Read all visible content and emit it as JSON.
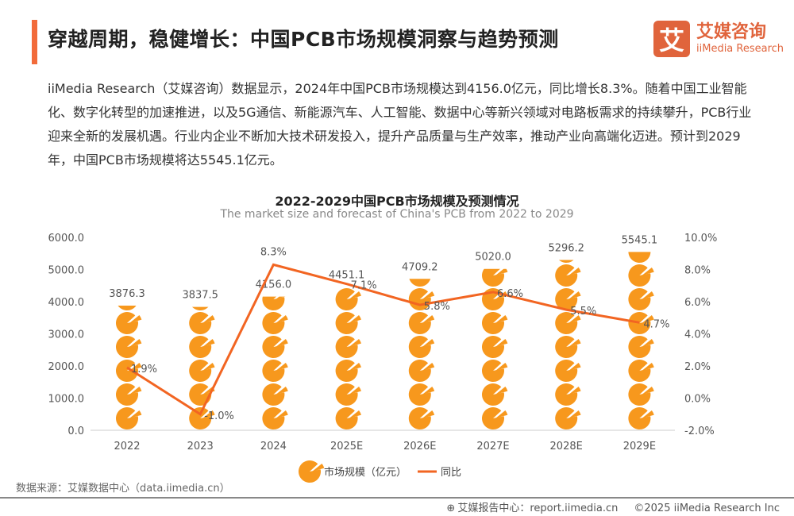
{
  "header": {
    "title": "穿越周期，稳健增长：中国PCB市场规模洞察与趋势预测",
    "logo_char": "艾",
    "logo_cn": "艾媒咨询",
    "logo_en": "iiMedia Research"
  },
  "paragraph": "iiMedia Research（艾媒咨询）数据显示，2024年中国PCB市场规模达到4156.0亿元，同比增长8.3%。随着中国工业智能化、数字化转型的加速推进，以及5G通信、新能源汽车、人工智能、数据中心等新兴领域对电路板需求的持续攀升，PCB行业迎来全新的发展机遇。行业内企业不断加大技术研发投入，提升产品质量与生产效率，推动产业向高端化迈进。预计到2029年，中国PCB市场规模将达5545.1亿元。",
  "chart_data": {
    "type": "bar",
    "title": "2022-2029中国PCB市场规模及预测情况",
    "subtitle": "The market size and forecast of China's PCB from 2022 to 2029",
    "categories": [
      "2022",
      "2023",
      "2024",
      "2025E",
      "2026E",
      "2027E",
      "2028E",
      "2029E"
    ],
    "series": [
      {
        "name": "市场规模（亿元）",
        "type": "pictorial-bar",
        "axis": "left",
        "values": [
          3876.3,
          3837.5,
          4156.0,
          4451.1,
          4709.2,
          5020.0,
          5296.2,
          5545.1
        ],
        "labels": [
          "3876.3",
          "3837.5",
          "4156.0",
          "4451.1",
          "4709.2",
          "5020.0",
          "5296.2",
          "5545.1"
        ]
      },
      {
        "name": "同比",
        "type": "line",
        "axis": "right",
        "values": [
          1.9,
          -1.0,
          8.3,
          7.1,
          5.8,
          6.6,
          5.5,
          4.7
        ],
        "labels": [
          "1.9%",
          "-1.0%",
          "8.3%",
          "7.1%",
          "5.8%",
          "6.6%",
          "5.5%",
          "4.7%"
        ]
      }
    ],
    "yleft": {
      "range": [
        0,
        6000
      ],
      "ticks": [
        "0.0",
        "1000.0",
        "2000.0",
        "3000.0",
        "4000.0",
        "5000.0",
        "6000.0"
      ]
    },
    "yright": {
      "range": [
        -2,
        10
      ],
      "ticks": [
        "-2.0%",
        "0.0%",
        "2.0%",
        "4.0%",
        "6.0%",
        "8.0%",
        "10.0%"
      ]
    },
    "legend": "bottom",
    "colors": {
      "bar": "#f7981d",
      "line": "#f26522"
    }
  },
  "source": "数据来源：艾媒数据中心（data.iimedia.cn）",
  "footer": {
    "report": "艾媒报告中心：report.iimedia.cn",
    "copyright": "©2025  iiMedia Research  Inc"
  }
}
